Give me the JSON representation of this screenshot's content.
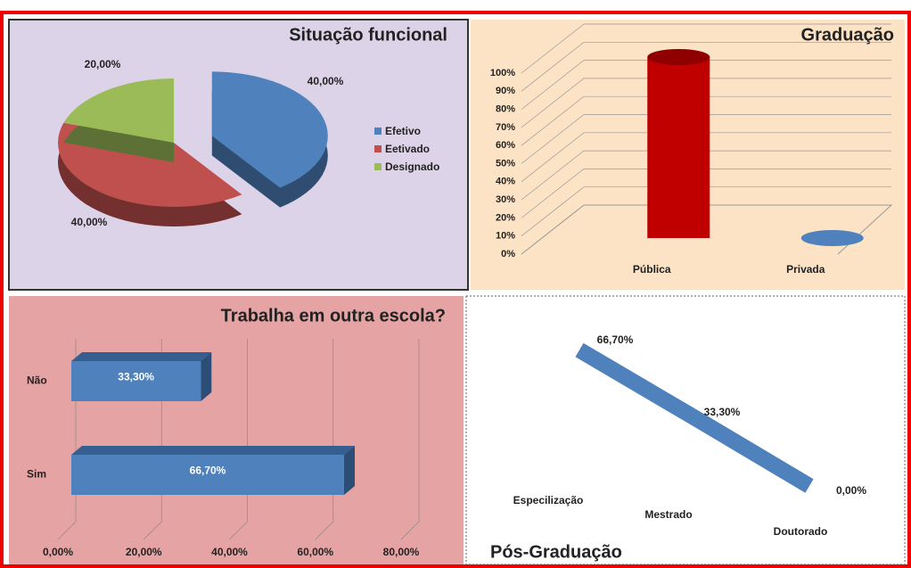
{
  "chart_data": [
    {
      "type": "pie",
      "title": "Situação funcional",
      "categories": [
        "Efetivo",
        "Eetivado",
        "Designado"
      ],
      "values": [
        40,
        40,
        20
      ],
      "value_labels": [
        "40,00%",
        "40,00%",
        "20,00%"
      ],
      "colors": [
        "#4f81bd",
        "#c0504d",
        "#9bbb59"
      ],
      "legend": "right"
    },
    {
      "type": "bar",
      "title": "Graduação",
      "categories": [
        "Pública",
        "Privada"
      ],
      "values": [
        100,
        0
      ],
      "colors": [
        "#c00000",
        "#4f81bd"
      ],
      "ylim": [
        0,
        100
      ],
      "yticks": [
        {
          "value": 0,
          "label": "0%"
        },
        {
          "value": 10,
          "label": "10%"
        },
        {
          "value": 20,
          "label": "20%"
        },
        {
          "value": 30,
          "label": "30%"
        },
        {
          "value": 40,
          "label": "40%"
        },
        {
          "value": 50,
          "label": "50%"
        },
        {
          "value": 60,
          "label": "60%"
        },
        {
          "value": 70,
          "label": "70%"
        },
        {
          "value": 80,
          "label": "80%"
        },
        {
          "value": 90,
          "label": "90%"
        },
        {
          "value": 100,
          "label": "100%"
        }
      ],
      "grid": true
    },
    {
      "type": "barh",
      "title": "Trabalha em outra escola?",
      "categories": [
        "Não",
        "Sim"
      ],
      "values": [
        33.3,
        66.7
      ],
      "value_labels": [
        "33,30%",
        "66,70%"
      ],
      "color": "#4f81bd",
      "xlim": [
        0,
        80
      ],
      "xticks": [
        {
          "value": 0,
          "label": "0,00%"
        },
        {
          "value": 20,
          "label": "20,00%"
        },
        {
          "value": 40,
          "label": "40,00%"
        },
        {
          "value": 60,
          "label": "60,00%"
        },
        {
          "value": 80,
          "label": "80,00%"
        }
      ],
      "grid": true
    },
    {
      "type": "line",
      "title": "Pós-Graduação",
      "categories": [
        "Especilização",
        "Mestrado",
        "Doutorado"
      ],
      "values": [
        66.7,
        33.3,
        0
      ],
      "value_labels": [
        "66,70%",
        "33,30%",
        "0,00%"
      ],
      "color": "#4f81bd",
      "ylim": [
        0,
        70
      ]
    }
  ]
}
